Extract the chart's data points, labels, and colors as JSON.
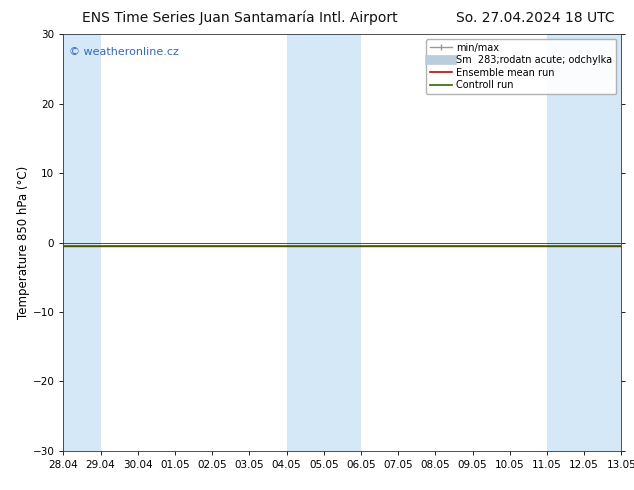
{
  "title_left": "ENS Time Series Juan Santamaría Intl. Airport",
  "title_right": "So. 27.04.2024 18 UTC",
  "ylabel": "Temperature 850 hPa (°C)",
  "watermark": "© weatheronline.cz",
  "watermark_color": "#3366cc",
  "ylim": [
    -30,
    30
  ],
  "yticks": [
    -30,
    -20,
    -10,
    0,
    10,
    20,
    30
  ],
  "x_start": "2024-04-28",
  "x_end": "2024-05-13",
  "x_tick_labels": [
    "28.04",
    "29.04",
    "30.04",
    "01.05",
    "02.05",
    "03.05",
    "04.05",
    "05.05",
    "06.05",
    "07.05",
    "08.05",
    "09.05",
    "10.05",
    "11.05",
    "12.05",
    "13.05"
  ],
  "background_color": "#ffffff",
  "plot_bg_color": "#ffffff",
  "shaded_bands": [
    {
      "x_start": "2024-04-28",
      "x_end": "2024-04-29",
      "color": "#d4e8f8"
    },
    {
      "x_start": "2024-04-30",
      "x_end": "2024-04-30",
      "color": "#ffffff"
    },
    {
      "x_start": "2024-05-04",
      "x_end": "2024-05-06",
      "color": "#d4e8f8"
    },
    {
      "x_start": "2024-05-11",
      "x_end": "2024-05-12",
      "color": "#d4e8f8"
    },
    {
      "x_start": "2024-05-12",
      "x_end": "2024-05-13",
      "color": "#d4e8f8"
    }
  ],
  "ensemble_mean_color": "#cc0000",
  "control_run_color": "#336600",
  "minmax_color": "#999999",
  "spread_color": "#bbccdd",
  "legend_labels": [
    "min/max",
    "Sm  283;rodatn acute; odchylka",
    "Ensemble mean run",
    "Controll run"
  ],
  "legend_colors": [
    "#999999",
    "#bbccdd",
    "#cc0000",
    "#336600"
  ],
  "title_fontsize": 10,
  "tick_label_fontsize": 7.5,
  "ylabel_fontsize": 8.5,
  "watermark_fontsize": 8,
  "legend_fontsize": 7
}
